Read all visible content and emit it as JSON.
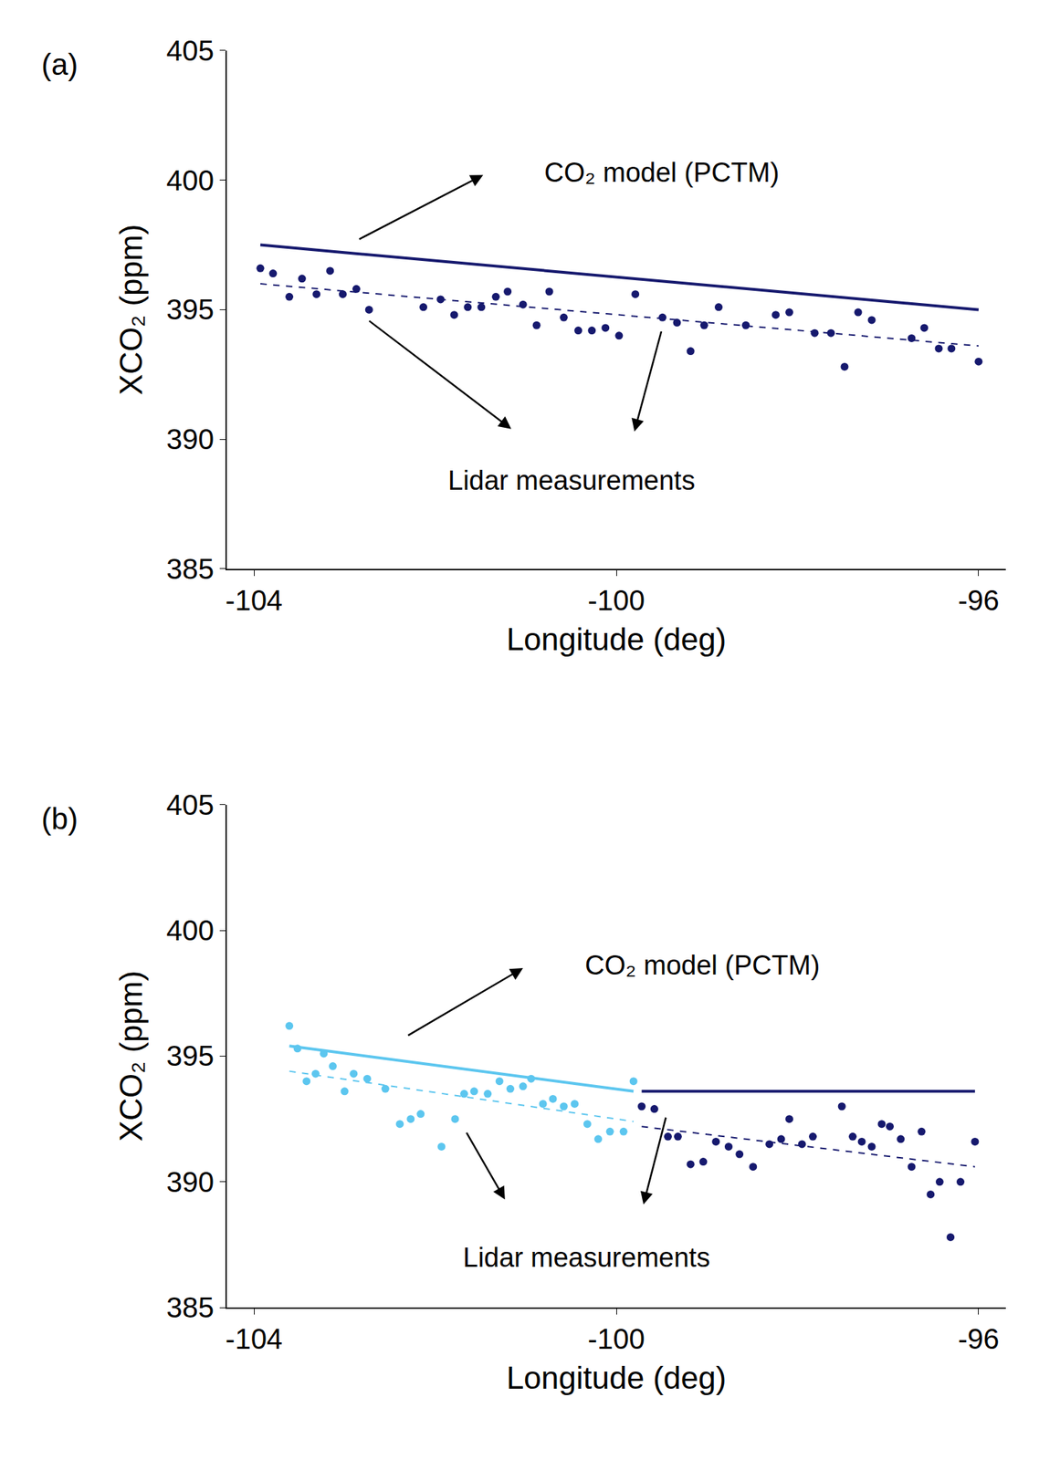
{
  "chart_data": [
    {
      "type": "scatter",
      "title": "(a)",
      "x_label": "Longitude (deg)",
      "y_label": "XCO₂ (ppm)",
      "xlim": [
        -104.3,
        -95.7
      ],
      "xticks": [
        -104,
        -100,
        -96
      ],
      "ylim": [
        385,
        405
      ],
      "yticks": [
        385,
        390,
        395,
        400,
        405
      ],
      "grid": false,
      "series": [
        {
          "type": "scatter",
          "marker": "circle",
          "color": "#16196e",
          "x": [
            -103.93,
            -103.79,
            -103.61,
            -103.47,
            -103.31,
            -103.16,
            -103.02,
            -102.87,
            -102.73,
            -102.13,
            -101.94,
            -101.79,
            -101.64,
            -101.49,
            -101.33,
            -101.2,
            -101.03,
            -100.88,
            -100.74,
            -100.58,
            -100.42,
            -100.27,
            -100.12,
            -99.97,
            -99.79,
            -99.49,
            -99.33,
            -99.18,
            -99.03,
            -98.87,
            -98.57,
            -98.24,
            -98.09,
            -97.81,
            -97.63,
            -97.48,
            -97.33,
            -97.18,
            -96.74,
            -96.6,
            -96.44,
            -96.3,
            -96.0
          ],
          "values": [
            396.6,
            396.4,
            395.5,
            396.2,
            395.6,
            396.5,
            395.6,
            395.8,
            395.0,
            395.1,
            395.4,
            394.8,
            395.1,
            395.1,
            395.5,
            395.7,
            395.2,
            394.4,
            395.7,
            394.7,
            394.2,
            394.2,
            394.3,
            394.0,
            395.6,
            394.7,
            394.5,
            393.4,
            394.4,
            395.1,
            394.4,
            394.8,
            394.9,
            394.1,
            394.1,
            392.8,
            394.9,
            394.6,
            393.9,
            394.3,
            393.5,
            393.5,
            393.0
          ]
        },
        {
          "type": "line",
          "line_style": "solid",
          "color": "#16196e",
          "x": [
            -103.93,
            -96.0
          ],
          "values": [
            397.5,
            395.0
          ]
        },
        {
          "type": "line",
          "line_style": "dash",
          "color": "#16196e",
          "x": [
            -103.93,
            -96.0
          ],
          "values": [
            396.0,
            393.6
          ]
        }
      ],
      "annotations": [
        {
          "text": "CO₂ model (PCTM)",
          "x": -99.5,
          "y": 400.3,
          "arrows": [
            [
              -102.85,
              397.7,
              -101.47,
              400.2
            ]
          ]
        },
        {
          "text": "Lidar measurements",
          "x": -100.5,
          "y": 388.4,
          "arrows": [
            [
              -102.74,
              394.6,
              -101.16,
              390.4
            ],
            [
              -99.5,
              394.2,
              -99.8,
              390.3
            ]
          ]
        }
      ]
    },
    {
      "type": "scatter",
      "title": "(b)",
      "x_label": "Longitude (deg)",
      "y_label": "XCO₂ (ppm)",
      "xlim": [
        -104.3,
        -95.7
      ],
      "xticks": [
        -104,
        -100,
        -96
      ],
      "ylim": [
        385,
        405
      ],
      "yticks": [
        385,
        390,
        395,
        400,
        405
      ],
      "grid": false,
      "series": [
        {
          "type": "scatter",
          "marker": "circle",
          "color": "#5cc6ef",
          "x": [
            -103.61,
            -103.52,
            -103.42,
            -103.32,
            -103.23,
            -103.13,
            -103.0,
            -102.9,
            -102.75,
            -102.55,
            -102.39,
            -102.27,
            -102.16,
            -101.93,
            -101.78,
            -101.68,
            -101.57,
            -101.42,
            -101.29,
            -101.17,
            -101.03,
            -100.94,
            -100.81,
            -100.7,
            -100.58,
            -100.46,
            -100.32,
            -100.2,
            -100.07,
            -99.92,
            -99.81
          ],
          "values": [
            396.2,
            395.3,
            394.0,
            394.3,
            395.1,
            394.6,
            393.6,
            394.3,
            394.1,
            393.7,
            392.3,
            392.5,
            392.7,
            391.4,
            392.5,
            393.5,
            393.6,
            393.5,
            394.0,
            393.7,
            393.8,
            394.1,
            393.1,
            393.3,
            393.0,
            393.1,
            392.3,
            391.7,
            392.0,
            392.0,
            394.0
          ]
        },
        {
          "type": "line",
          "line_style": "solid",
          "color": "#5cc6ef",
          "x": [
            -103.61,
            -99.81
          ],
          "values": [
            395.4,
            393.6
          ]
        },
        {
          "type": "line",
          "line_style": "dash",
          "color": "#5cc6ef",
          "x": [
            -103.61,
            -99.81
          ],
          "values": [
            394.4,
            392.4
          ]
        },
        {
          "type": "scatter",
          "marker": "circle",
          "color": "#16196e",
          "x": [
            -99.72,
            -99.58,
            -99.43,
            -99.32,
            -99.18,
            -99.04,
            -98.9,
            -98.76,
            -98.64,
            -98.49,
            -98.31,
            -98.18,
            -98.09,
            -97.95,
            -97.83,
            -97.51,
            -97.39,
            -97.29,
            -97.18,
            -97.07,
            -96.98,
            -96.86,
            -96.74,
            -96.63,
            -96.53,
            -96.43,
            -96.31,
            -96.2,
            -96.04
          ],
          "values": [
            393.0,
            392.9,
            391.8,
            391.8,
            390.7,
            390.8,
            391.6,
            391.4,
            391.1,
            390.6,
            391.5,
            391.7,
            392.5,
            391.5,
            391.8,
            393.0,
            391.8,
            391.6,
            391.4,
            392.3,
            392.2,
            391.7,
            390.6,
            392.0,
            389.5,
            390.0,
            387.8,
            390.0,
            391.6
          ]
        },
        {
          "type": "line",
          "line_style": "solid",
          "color": "#16196e",
          "x": [
            -99.72,
            -96.04
          ],
          "values": [
            393.6,
            393.6
          ]
        },
        {
          "type": "line",
          "line_style": "dash",
          "color": "#16196e",
          "x": [
            -99.72,
            -96.04
          ],
          "values": [
            392.2,
            390.6
          ]
        }
      ],
      "annotations": [
        {
          "text": "CO₂ model (PCTM)",
          "x": -99.05,
          "y": 398.6,
          "arrows": [
            [
              -102.31,
              395.8,
              -101.03,
              398.5
            ]
          ]
        },
        {
          "text": "Lidar measurements",
          "x": -100.33,
          "y": 387.0,
          "arrows": [
            [
              -101.66,
              392.0,
              -101.23,
              389.3
            ],
            [
              -99.45,
              392.6,
              -99.7,
              389.1
            ]
          ]
        }
      ]
    }
  ]
}
